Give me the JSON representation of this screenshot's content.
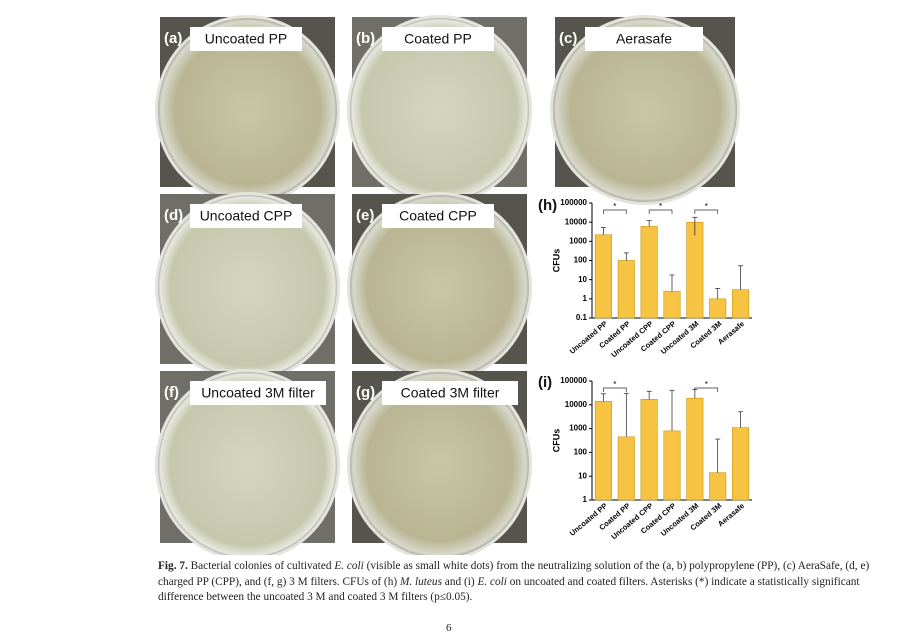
{
  "photos": [
    {
      "letter": "(a)",
      "label": "Uncoated PP"
    },
    {
      "letter": "(b)",
      "label": "Coated PP"
    },
    {
      "letter": "(c)",
      "label": "Aerasafe"
    },
    {
      "letter": "(d)",
      "label": "Uncoated CPP"
    },
    {
      "letter": "(e)",
      "label": "Coated CPP"
    },
    {
      "letter": "(f)",
      "label": "Uncoated 3M filter"
    },
    {
      "letter": "(g)",
      "label": "Coated 3M filter"
    }
  ],
  "chart_data": [
    {
      "type": "bar",
      "title": "(h)",
      "y_label": "CFUs",
      "log_scale": true,
      "color": "#f6c343",
      "edge_color": "#c9960f",
      "categories": [
        "Uncoated PP",
        "Coated PP",
        "Uncoated CPP",
        "Coated CPP",
        "Uncoated 3M",
        "Coated 3M",
        "Aerasafe"
      ],
      "values": [
        2200,
        100,
        6000,
        2.5,
        10000,
        1,
        3
      ],
      "errors": [
        3000,
        150,
        6000,
        15,
        8000,
        2.5,
        50
      ],
      "annotations": [
        "*",
        "*",
        "*"
      ],
      "ylim": [
        0.1,
        100000
      ],
      "yticks": [
        0.1,
        1,
        10,
        100,
        1000,
        10000,
        100000
      ]
    },
    {
      "type": "bar",
      "title": "(i)",
      "y_label": "CFUs",
      "log_scale": true,
      "color": "#f6c343",
      "edge_color": "#c9960f",
      "categories": [
        "Uncoated PP",
        "Coated PP",
        "Uncoated CPP",
        "Coated CPP",
        "Uncoated 3M",
        "Coated 3M",
        "Aerasafe"
      ],
      "values": [
        14000,
        450,
        17000,
        800,
        19000,
        14,
        1100
      ],
      "errors": [
        15000,
        30000,
        20000,
        40000,
        25000,
        350,
        4000
      ],
      "annotations": [
        "*",
        "*"
      ],
      "ylim": [
        1,
        100000
      ],
      "yticks": [
        1,
        10,
        100,
        1000,
        10000,
        100000
      ]
    }
  ],
  "caption": [
    {
      "text": "Fig. 7.",
      "style": "bold"
    },
    {
      "text": " Bacterial colonies of cultivated ",
      "style": "normal"
    },
    {
      "text": "E. coli",
      "style": "italic"
    },
    {
      "text": " (visible as small white dots) from the neutralizing solution of the (a, b) polypropylene (PP), (c) AeraSafe, (d, e) charged PP (CPP), and (f, g) 3 M filters. CFUs of (h) ",
      "style": "normal"
    },
    {
      "text": "M. luteus",
      "style": "italic"
    },
    {
      "text": " and (i) ",
      "style": "normal"
    },
    {
      "text": "E. coli",
      "style": "italic"
    },
    {
      "text": " on uncoated and coated filters. Asterisks (*) indicate a statistically significant difference between the uncoated 3 M and coated 3 M filters (p≤0.05).",
      "style": "normal"
    }
  ],
  "page_number": "6"
}
